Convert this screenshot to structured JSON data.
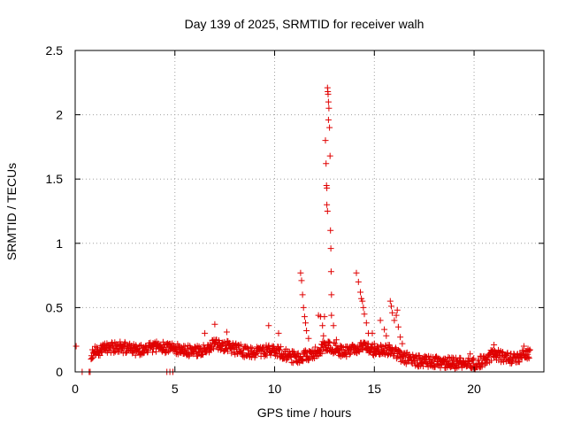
{
  "chart_data": {
    "type": "scatter",
    "title": "Day 139 of 2025, SRMTID for receiver walh",
    "xlabel": "GPS time / hours",
    "ylabel": "SRMTID / TECUs",
    "xlim": [
      0,
      23.5
    ],
    "ylim": [
      0,
      2.5
    ],
    "xticks": [
      0,
      5,
      10,
      15,
      20
    ],
    "xtick_labels": [
      "0",
      "5",
      "10",
      "15",
      "20"
    ],
    "yticks": [
      0,
      0.5,
      1,
      1.5,
      2,
      2.5
    ],
    "ytick_labels": [
      "0",
      "0.5",
      "1",
      "1.5",
      "2",
      "2.5"
    ],
    "grid": true,
    "marker": "+",
    "color": "#e00000",
    "baseline": [
      [
        0.0,
        0.17
      ],
      [
        0.5,
        0.12
      ],
      [
        1.0,
        0.16
      ],
      [
        1.5,
        0.18
      ],
      [
        2.0,
        0.19
      ],
      [
        2.5,
        0.19
      ],
      [
        3.0,
        0.17
      ],
      [
        3.5,
        0.18
      ],
      [
        4.0,
        0.2
      ],
      [
        4.5,
        0.19
      ],
      [
        5.0,
        0.18
      ],
      [
        5.5,
        0.17
      ],
      [
        6.0,
        0.15
      ],
      [
        6.5,
        0.18
      ],
      [
        7.0,
        0.21
      ],
      [
        7.5,
        0.2
      ],
      [
        8.0,
        0.18
      ],
      [
        8.5,
        0.16
      ],
      [
        9.0,
        0.15
      ],
      [
        9.5,
        0.16
      ],
      [
        10.0,
        0.17
      ],
      [
        10.5,
        0.14
      ],
      [
        11.0,
        0.11
      ],
      [
        11.5,
        0.12
      ],
      [
        12.0,
        0.15
      ],
      [
        12.5,
        0.2
      ],
      [
        13.0,
        0.18
      ],
      [
        13.5,
        0.15
      ],
      [
        14.0,
        0.17
      ],
      [
        14.5,
        0.2
      ],
      [
        15.0,
        0.17
      ],
      [
        15.5,
        0.18
      ],
      [
        16.0,
        0.15
      ],
      [
        16.5,
        0.11
      ],
      [
        17.0,
        0.09
      ],
      [
        17.5,
        0.08
      ],
      [
        18.0,
        0.08
      ],
      [
        18.5,
        0.07
      ],
      [
        19.0,
        0.07
      ],
      [
        19.5,
        0.07
      ],
      [
        20.0,
        0.06
      ],
      [
        20.5,
        0.09
      ],
      [
        21.0,
        0.14
      ],
      [
        21.5,
        0.11
      ],
      [
        22.0,
        0.11
      ],
      [
        22.5,
        0.13
      ],
      [
        22.8,
        0.14
      ]
    ],
    "points": [
      [
        0.05,
        0.2
      ],
      [
        0.35,
        0.0
      ],
      [
        0.7,
        0.0
      ],
      [
        0.75,
        0.0
      ],
      [
        4.6,
        0.0
      ],
      [
        4.75,
        0.0
      ],
      [
        4.9,
        0.0
      ],
      [
        6.5,
        0.3
      ],
      [
        7.0,
        0.37
      ],
      [
        7.6,
        0.31
      ],
      [
        9.7,
        0.36
      ],
      [
        10.2,
        0.3
      ],
      [
        11.3,
        0.77
      ],
      [
        11.35,
        0.71
      ],
      [
        11.4,
        0.6
      ],
      [
        11.45,
        0.5
      ],
      [
        11.5,
        0.43
      ],
      [
        11.55,
        0.38
      ],
      [
        11.6,
        0.32
      ],
      [
        11.7,
        0.26
      ],
      [
        12.2,
        0.44
      ],
      [
        12.3,
        0.43
      ],
      [
        12.4,
        0.36
      ],
      [
        12.45,
        0.28
      ],
      [
        12.5,
        0.43
      ],
      [
        12.55,
        1.8
      ],
      [
        12.58,
        1.62
      ],
      [
        12.6,
        1.45
      ],
      [
        12.62,
        1.3
      ],
      [
        12.65,
        1.25
      ],
      [
        12.62,
        1.43
      ],
      [
        12.65,
        2.21
      ],
      [
        12.67,
        2.18
      ],
      [
        12.68,
        2.16
      ],
      [
        12.7,
        2.1
      ],
      [
        12.72,
        2.05
      ],
      [
        12.7,
        1.96
      ],
      [
        12.75,
        1.9
      ],
      [
        12.78,
        1.68
      ],
      [
        12.8,
        1.1
      ],
      [
        12.82,
        0.96
      ],
      [
        12.83,
        0.78
      ],
      [
        12.85,
        0.6
      ],
      [
        12.85,
        0.44
      ],
      [
        12.95,
        0.36
      ],
      [
        13.1,
        0.25
      ],
      [
        14.1,
        0.77
      ],
      [
        14.2,
        0.7
      ],
      [
        14.3,
        0.62
      ],
      [
        14.35,
        0.57
      ],
      [
        14.4,
        0.55
      ],
      [
        14.45,
        0.5
      ],
      [
        14.5,
        0.45
      ],
      [
        14.6,
        0.38
      ],
      [
        14.7,
        0.3
      ],
      [
        14.9,
        0.3
      ],
      [
        15.0,
        0.22
      ],
      [
        15.3,
        0.4
      ],
      [
        15.5,
        0.33
      ],
      [
        15.6,
        0.28
      ],
      [
        15.8,
        0.55
      ],
      [
        15.85,
        0.51
      ],
      [
        15.9,
        0.46
      ],
      [
        16.0,
        0.4
      ],
      [
        16.1,
        0.44
      ],
      [
        16.15,
        0.48
      ],
      [
        16.2,
        0.35
      ],
      [
        16.3,
        0.27
      ],
      [
        16.4,
        0.22
      ],
      [
        19.8,
        0.14
      ],
      [
        21.0,
        0.21
      ],
      [
        22.5,
        0.2
      ],
      [
        22.7,
        0.18
      ]
    ]
  }
}
